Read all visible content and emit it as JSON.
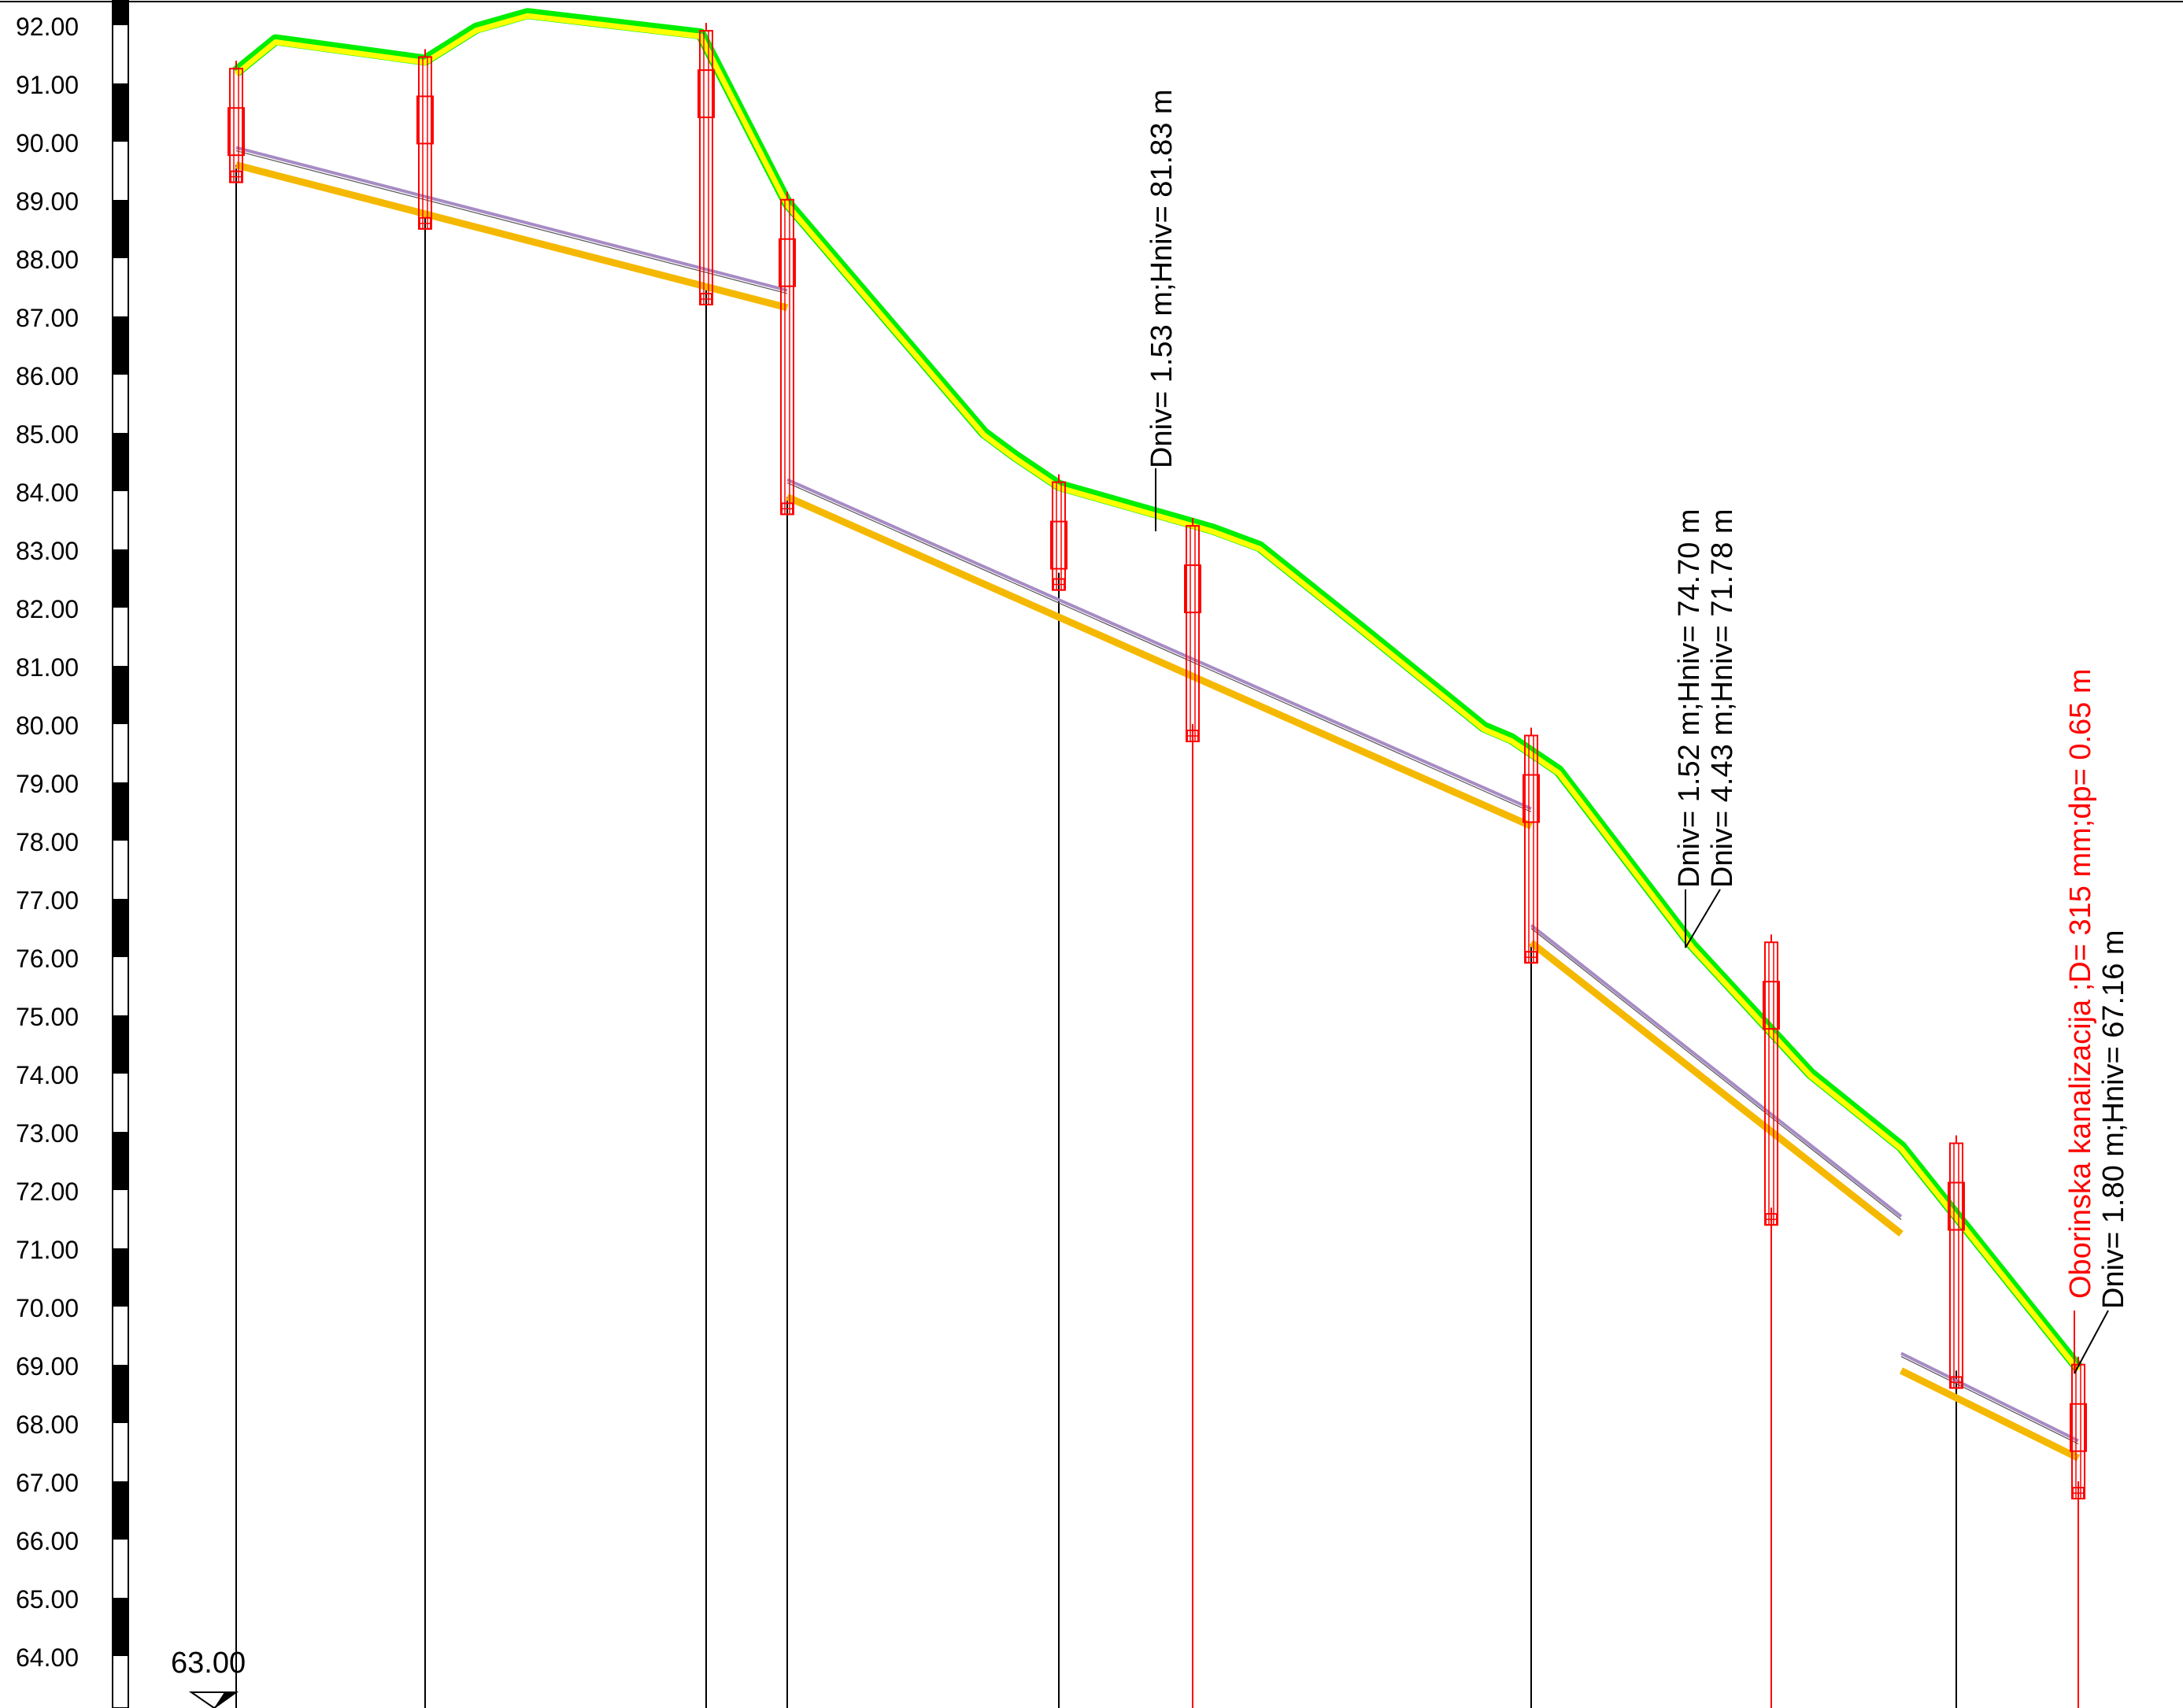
{
  "title": "",
  "scale": {
    "min": 64,
    "max": 92,
    "step": 1,
    "labels": [
      "92.00",
      "91.00",
      "90.00",
      "89.00",
      "88.00",
      "87.00",
      "86.00",
      "85.00",
      "84.00",
      "83.00",
      "82.00",
      "81.00",
      "80.00",
      "79.00",
      "78.00",
      "77.00",
      "76.00",
      "75.00",
      "74.00",
      "73.00",
      "72.00",
      "71.00",
      "70.00",
      "69.00",
      "68.00",
      "67.00",
      "66.00",
      "65.00",
      "64.00"
    ]
  },
  "datum_label": "63.00",
  "colors": {
    "terrain_outer": "#00ee00",
    "terrain_inner": "#ffff00",
    "pipe_bottom": "#f5b800",
    "pipe_top": "#a78bc4",
    "manhole": "#ff0000",
    "annotation_black": "#000000",
    "annotation_red": "#ff0000",
    "scale_block": "#000000"
  },
  "terrain": [
    {
      "station": 0,
      "elevation": 91.2
    },
    {
      "station": 50,
      "elevation": 91.75
    },
    {
      "station": 240,
      "elevation": 91.4
    },
    {
      "station": 305,
      "elevation": 91.95
    },
    {
      "station": 370,
      "elevation": 92.2
    },
    {
      "station": 590,
      "elevation": 91.85
    },
    {
      "station": 700,
      "elevation": 88.95
    },
    {
      "station": 950,
      "elevation": 85.0
    },
    {
      "station": 990,
      "elevation": 84.6
    },
    {
      "station": 1045,
      "elevation": 84.1
    },
    {
      "station": 1240,
      "elevation": 83.35
    },
    {
      "station": 1300,
      "elevation": 83.05
    },
    {
      "station": 1425,
      "elevation": 81.7
    },
    {
      "station": 1585,
      "elevation": 79.95
    },
    {
      "station": 1620,
      "elevation": 79.75
    },
    {
      "station": 1680,
      "elevation": 79.2
    },
    {
      "station": 1850,
      "elevation": 76.2
    },
    {
      "station": 2000,
      "elevation": 74.0
    },
    {
      "station": 2115,
      "elevation": 72.75
    },
    {
      "station": 2340,
      "elevation": 68.95
    }
  ],
  "pipe_segments": [
    {
      "from_station": 0,
      "to_station": 700,
      "bottom_start": 89.6,
      "bottom_end": 87.15
    },
    {
      "from_station": 700,
      "to_station": 1645,
      "bottom_start": 83.9,
      "bottom_end": 78.25
    },
    {
      "from_station": 1645,
      "to_station": 2115,
      "bottom_start": 76.25,
      "bottom_end": 71.25
    },
    {
      "from_station": 2115,
      "to_station": 2340,
      "bottom_start": 68.9,
      "bottom_end": 67.4
    }
  ],
  "manholes": [
    {
      "station": 0,
      "top": 91.2,
      "bottom": 89.6,
      "line": "black"
    },
    {
      "station": 240,
      "top": 91.4,
      "bottom": 88.8,
      "line": "black"
    },
    {
      "station": 597,
      "top": 91.85,
      "bottom": 87.5,
      "line": "black"
    },
    {
      "station": 700,
      "top": 88.95,
      "bottom": 83.9,
      "line": "black"
    },
    {
      "station": 1045,
      "top": 84.1,
      "bottom": 82.6,
      "line": "black"
    },
    {
      "station": 1215,
      "top": 83.35,
      "bottom": 80.0,
      "line": "red"
    },
    {
      "station": 1645,
      "top": 79.75,
      "bottom": 76.2,
      "line": "black"
    },
    {
      "station": 1950,
      "top": 76.2,
      "bottom": 71.7,
      "line": "red"
    },
    {
      "station": 2185,
      "top": 72.75,
      "bottom": 68.9,
      "line": "black"
    },
    {
      "station": 2340,
      "top": 68.95,
      "bottom": 67.0,
      "line": "red"
    }
  ],
  "annotations": {
    "manhole_1": {
      "line1": "Dniv= 1.53 m;Hniv= 81.83 m"
    },
    "manhole_2": {
      "line1": "Dniv= 1.52 m;Hniv= 74.70 m",
      "line2": "Dniv= 4.43 m;Hniv= 71.78 m"
    },
    "manhole_3": {
      "line1": "Oborinska kanalizacija ;D= 315 mm;dp= 0.65 m",
      "line2": "Dniv= 1.80 m;Hniv= 67.16 m"
    }
  }
}
